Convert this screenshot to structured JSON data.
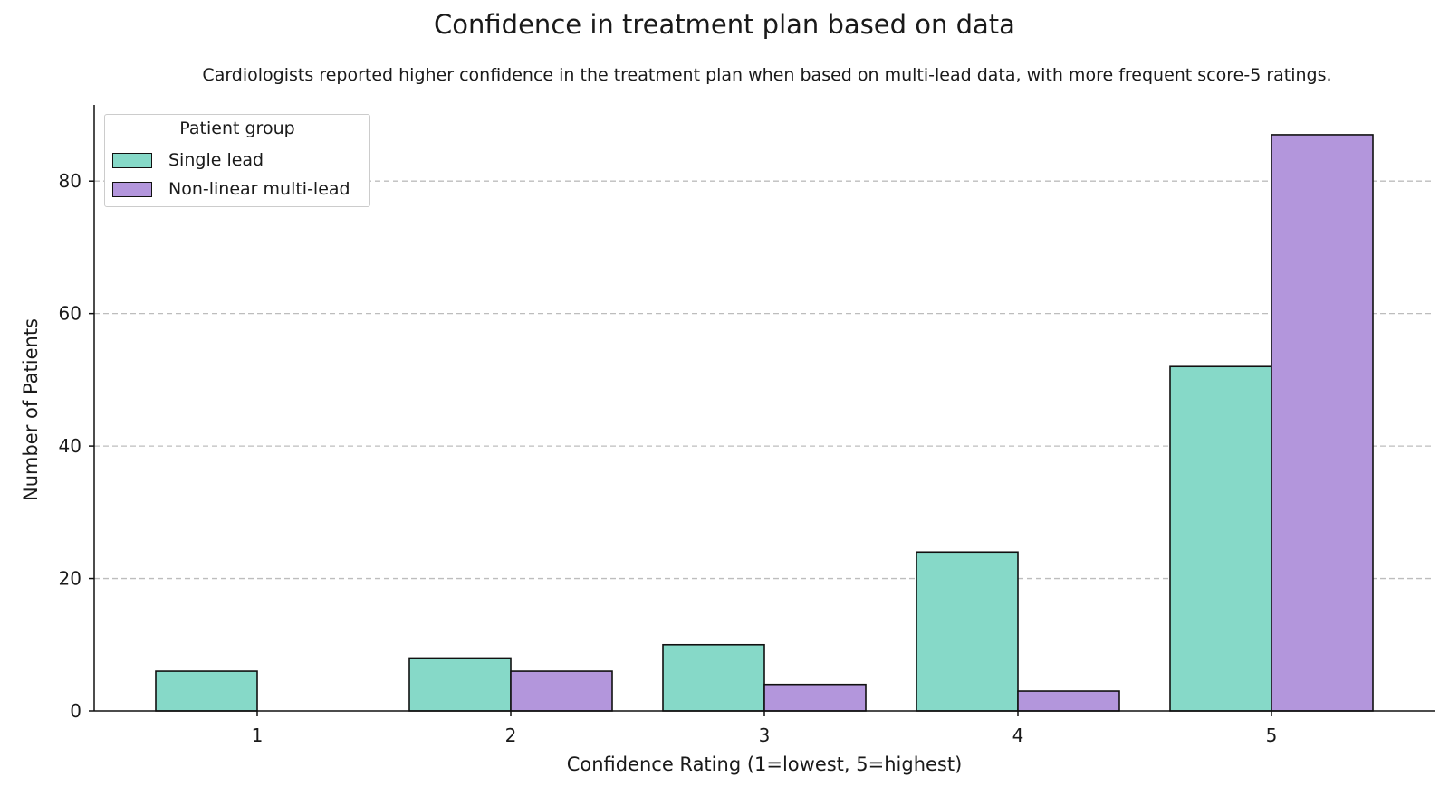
{
  "chart_data": {
    "type": "bar",
    "title": "Confidence in treatment plan based on data",
    "subtitle": "Cardiologists reported higher confidence in the treatment plan when based on multi-lead data, with more frequent score-5 ratings.",
    "xlabel": "Confidence Rating (1=lowest, 5=highest)",
    "ylabel": "Number of Patients",
    "categories": [
      "1",
      "2",
      "3",
      "4",
      "5"
    ],
    "yticks": [
      0,
      20,
      40,
      60,
      80
    ],
    "ylim": [
      0,
      91.5
    ],
    "grid": "horizontal dashed",
    "legend": {
      "title": "Patient group",
      "placement": "top-left"
    },
    "series": [
      {
        "name": "Single lead",
        "color": "#86d9c8",
        "values": [
          6,
          8,
          10,
          24,
          52
        ]
      },
      {
        "name": "Non-linear multi-lead",
        "color": "#b396dc",
        "values": [
          0,
          6,
          4,
          3,
          87
        ]
      }
    ]
  }
}
